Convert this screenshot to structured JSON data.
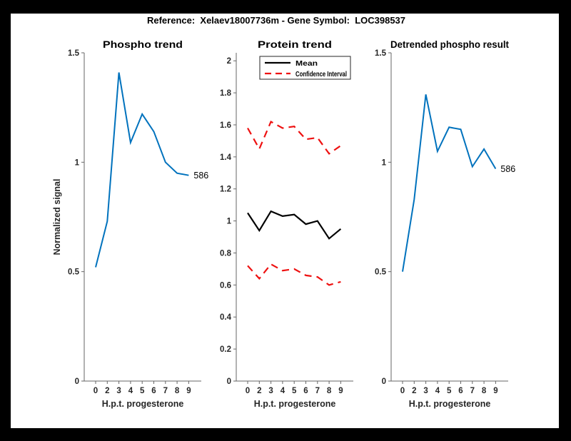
{
  "header": {
    "title": "Reference:  Xelaev18007736m - Gene Symbol:  LOC398537"
  },
  "colors": {
    "frame": "#000000",
    "canvas": "#ffffff",
    "blue": "#0072BD",
    "red": "#ee1111",
    "black": "#000000",
    "axis": "#666666",
    "tick_text": "#262626"
  },
  "chart_data": [
    {
      "type": "line",
      "title": "Phospho trend",
      "xlabel": "H.p.t. progesterone",
      "ylabel": "Normalized signal",
      "x_tick_labels": [
        "0",
        "2",
        "3",
        "4",
        "5",
        "6",
        "7",
        "8",
        "9"
      ],
      "y_tick_values": [
        0,
        0.5,
        1,
        1.5
      ],
      "y_tick_labels": [
        "0",
        "0.5",
        "1",
        "1.5"
      ],
      "ylim": [
        0,
        1.5
      ],
      "grid": false,
      "series": [
        {
          "name": "phospho-signal",
          "color": "#0072BD",
          "style": "solid",
          "values": [
            0.52,
            0.73,
            1.41,
            1.09,
            1.22,
            1.14,
            1.0,
            0.95,
            0.94
          ]
        }
      ],
      "end_label": "586"
    },
    {
      "type": "line",
      "title": "Protein trend",
      "xlabel": "H.p.t. progesterone",
      "ylabel": "",
      "x_tick_labels": [
        "0",
        "2",
        "3",
        "4",
        "5",
        "6",
        "7",
        "8",
        "9"
      ],
      "y_tick_values": [
        0,
        0.2,
        0.4,
        0.6,
        0.8,
        1,
        1.2,
        1.4,
        1.6,
        1.8,
        2
      ],
      "y_tick_labels": [
        "0",
        "0.2",
        "0.4",
        "0.6",
        "0.8",
        "1",
        "1.2",
        "1.4",
        "1.6",
        "1.8",
        "2"
      ],
      "ylim": [
        0,
        2.05
      ],
      "grid": false,
      "series": [
        {
          "name": "mean",
          "color": "#000000",
          "style": "solid",
          "values": [
            1.05,
            0.94,
            1.06,
            1.03,
            1.04,
            0.98,
            1.0,
            0.89,
            0.95
          ]
        },
        {
          "name": "confidence-interval-upper",
          "color": "#ee1111",
          "style": "dashed",
          "values": [
            1.58,
            1.45,
            1.62,
            1.58,
            1.59,
            1.51,
            1.52,
            1.42,
            1.47
          ]
        },
        {
          "name": "confidence-interval-lower",
          "color": "#ee1111",
          "style": "dashed",
          "values": [
            0.72,
            0.64,
            0.73,
            0.69,
            0.7,
            0.66,
            0.65,
            0.6,
            0.62
          ]
        }
      ],
      "legend": {
        "position": "top-left",
        "entries": [
          {
            "label": "Mean",
            "color": "#000000",
            "style": "solid"
          },
          {
            "label": "Confidence Interval",
            "color": "#ee1111",
            "style": "dashed"
          }
        ]
      }
    },
    {
      "type": "line",
      "title": "Detrended phospho result",
      "xlabel": "H.p.t. progesterone",
      "ylabel": "",
      "x_tick_labels": [
        "0",
        "2",
        "3",
        "4",
        "5",
        "6",
        "7",
        "8",
        "9"
      ],
      "y_tick_values": [
        0,
        0.5,
        1,
        1.5
      ],
      "y_tick_labels": [
        "0",
        "0.5",
        "1",
        "1.5"
      ],
      "ylim": [
        0,
        1.5
      ],
      "grid": false,
      "series": [
        {
          "name": "detrended-phospho",
          "color": "#0072BD",
          "style": "solid",
          "values": [
            0.5,
            0.83,
            1.31,
            1.05,
            1.16,
            1.15,
            0.98,
            1.06,
            0.97
          ]
        }
      ],
      "end_label": "586"
    }
  ]
}
